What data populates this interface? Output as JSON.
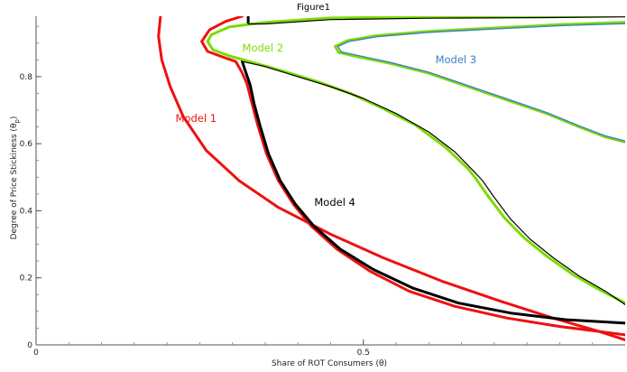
{
  "window": {
    "title": "Figure1"
  },
  "chart_data": {
    "type": "line",
    "title": "",
    "xlabel": "Share of ROT Consumers (θ)",
    "ylabel": "Degree of Price Stickiness (θp)",
    "ylabel_main": "Degree of Price Stickiness (θ",
    "ylabel_sub": "p",
    "ylabel_close": ")",
    "xlim": [
      0,
      0.9
    ],
    "ylim": [
      0,
      0.98
    ],
    "x_ticks": [
      {
        "value": 0,
        "label": "0"
      },
      {
        "value": 0.5,
        "label": "0.5"
      }
    ],
    "y_ticks": [
      {
        "value": 0,
        "label": "0"
      },
      {
        "value": 0.2,
        "label": "0.2"
      },
      {
        "value": 0.4,
        "label": "0.4"
      },
      {
        "value": 0.6,
        "label": "0.6"
      },
      {
        "value": 0.8,
        "label": "0.8"
      }
    ],
    "grid": false,
    "series": [
      {
        "name": "Model 1",
        "color": "#ee1111",
        "width": 3.0,
        "segments": [
          [
            [
              0.19,
              0.98
            ],
            [
              0.187,
              0.92
            ],
            [
              0.192,
              0.85
            ],
            [
              0.205,
              0.77
            ],
            [
              0.225,
              0.68
            ],
            [
              0.26,
              0.58
            ],
            [
              0.31,
              0.49
            ],
            [
              0.37,
              0.41
            ],
            [
              0.45,
              0.33
            ],
            [
              0.53,
              0.26
            ],
            [
              0.62,
              0.19
            ],
            [
              0.71,
              0.13
            ],
            [
              0.79,
              0.08
            ],
            [
              0.86,
              0.04
            ],
            [
              0.9,
              0.015
            ]
          ],
          [
            [
              0.315,
              0.98
            ],
            [
              0.29,
              0.965
            ],
            [
              0.265,
              0.94
            ],
            [
              0.253,
              0.905
            ],
            [
              0.262,
              0.875
            ],
            [
              0.29,
              0.855
            ],
            [
              0.305,
              0.845
            ],
            [
              0.314,
              0.815
            ],
            [
              0.322,
              0.78
            ],
            [
              0.33,
              0.72
            ],
            [
              0.338,
              0.66
            ],
            [
              0.352,
              0.57
            ],
            [
              0.37,
              0.49
            ],
            [
              0.393,
              0.42
            ],
            [
              0.42,
              0.355
            ],
            [
              0.46,
              0.285
            ],
            [
              0.51,
              0.22
            ],
            [
              0.57,
              0.16
            ],
            [
              0.64,
              0.115
            ],
            [
              0.72,
              0.08
            ],
            [
              0.8,
              0.055
            ],
            [
              0.86,
              0.04
            ],
            [
              0.9,
              0.03
            ]
          ]
        ]
      },
      {
        "name": "Model 4",
        "color": "#000000",
        "width": 3.0,
        "segments": [
          [
            [
              0.315,
              0.845
            ],
            [
              0.32,
              0.815
            ],
            [
              0.327,
              0.775
            ],
            [
              0.333,
              0.72
            ],
            [
              0.342,
              0.655
            ],
            [
              0.355,
              0.57
            ],
            [
              0.373,
              0.49
            ],
            [
              0.396,
              0.42
            ],
            [
              0.424,
              0.355
            ],
            [
              0.465,
              0.285
            ],
            [
              0.515,
              0.225
            ],
            [
              0.575,
              0.17
            ],
            [
              0.645,
              0.125
            ],
            [
              0.725,
              0.095
            ],
            [
              0.81,
              0.075
            ],
            [
              0.9,
              0.065
            ]
          ],
          [
            [
              0.324,
              0.98
            ],
            [
              0.324,
              0.957
            ]
          ]
        ]
      },
      {
        "name": "Model 2",
        "color": "#7ddb00",
        "width": 3.0,
        "segments": [
          [
            [
              0.9,
              0.982
            ],
            [
              0.78,
              0.98
            ],
            [
              0.6,
              0.978
            ],
            [
              0.45,
              0.975
            ],
            [
              0.35,
              0.962
            ],
            [
              0.295,
              0.948
            ],
            [
              0.268,
              0.925
            ],
            [
              0.262,
              0.905
            ],
            [
              0.27,
              0.88
            ],
            [
              0.295,
              0.862
            ],
            [
              0.33,
              0.843
            ],
            [
              0.38,
              0.815
            ],
            [
              0.43,
              0.785
            ],
            [
              0.48,
              0.75
            ],
            [
              0.53,
              0.705
            ],
            [
              0.58,
              0.655
            ],
            [
              0.625,
              0.59
            ],
            [
              0.66,
              0.525
            ],
            [
              0.672,
              0.495
            ],
            [
              0.69,
              0.445
            ],
            [
              0.715,
              0.38
            ],
            [
              0.745,
              0.32
            ],
            [
              0.78,
              0.265
            ],
            [
              0.82,
              0.21
            ],
            [
              0.86,
              0.165
            ],
            [
              0.9,
              0.125
            ]
          ],
          [
            [
              0.9,
              0.962
            ],
            [
              0.8,
              0.955
            ],
            [
              0.7,
              0.945
            ],
            [
              0.6,
              0.935
            ],
            [
              0.52,
              0.922
            ],
            [
              0.475,
              0.907
            ],
            [
              0.457,
              0.89
            ],
            [
              0.462,
              0.872
            ],
            [
              0.49,
              0.86
            ],
            [
              0.54,
              0.84
            ],
            [
              0.6,
              0.81
            ],
            [
              0.66,
              0.77
            ],
            [
              0.72,
              0.73
            ],
            [
              0.78,
              0.69
            ],
            [
              0.83,
              0.65
            ],
            [
              0.87,
              0.62
            ],
            [
              0.9,
              0.605
            ]
          ]
        ]
      },
      {
        "name": "Model 3",
        "color": "#3a7fc8",
        "width": 1.4,
        "segments": [
          [
            [
              0.9,
              0.958
            ],
            [
              0.8,
              0.952
            ],
            [
              0.7,
              0.942
            ],
            [
              0.6,
              0.932
            ],
            [
              0.52,
              0.919
            ],
            [
              0.478,
              0.905
            ],
            [
              0.461,
              0.89
            ],
            [
              0.466,
              0.874
            ],
            [
              0.492,
              0.863
            ],
            [
              0.54,
              0.843
            ],
            [
              0.6,
              0.813
            ],
            [
              0.66,
              0.773
            ],
            [
              0.72,
              0.733
            ],
            [
              0.78,
              0.693
            ],
            [
              0.83,
              0.653
            ],
            [
              0.87,
              0.623
            ],
            [
              0.9,
              0.608
            ]
          ]
        ]
      },
      {
        "name": "",
        "color": "#000000",
        "width": 1.2,
        "segments": [
          [
            [
              0.9,
              0.978
            ],
            [
              0.78,
              0.976
            ],
            [
              0.6,
              0.974
            ],
            [
              0.45,
              0.97
            ],
            [
              0.35,
              0.957
            ],
            [
              0.324,
              0.957
            ]
          ],
          [
            [
              0.315,
              0.845
            ],
            [
              0.35,
              0.83
            ],
            [
              0.4,
              0.8
            ],
            [
              0.45,
              0.77
            ],
            [
              0.5,
              0.735
            ],
            [
              0.55,
              0.69
            ],
            [
              0.6,
              0.635
            ],
            [
              0.64,
              0.575
            ],
            [
              0.67,
              0.515
            ],
            [
              0.682,
              0.49
            ],
            [
              0.7,
              0.44
            ],
            [
              0.725,
              0.375
            ],
            [
              0.755,
              0.315
            ],
            [
              0.79,
              0.26
            ],
            [
              0.83,
              0.205
            ],
            [
              0.87,
              0.16
            ],
            [
              0.9,
              0.12
            ]
          ]
        ]
      }
    ],
    "annotations": [
      {
        "text": "Model 1",
        "x": 0.213,
        "y": 0.665,
        "color": "#ee1111"
      },
      {
        "text": "Model 2",
        "x": 0.315,
        "y": 0.875,
        "color": "#7ddb00"
      },
      {
        "text": "Model 3",
        "x": 0.61,
        "y": 0.84,
        "color": "#3a7fc8"
      },
      {
        "text": "Model 4",
        "x": 0.425,
        "y": 0.415,
        "color": "#000000"
      }
    ]
  }
}
